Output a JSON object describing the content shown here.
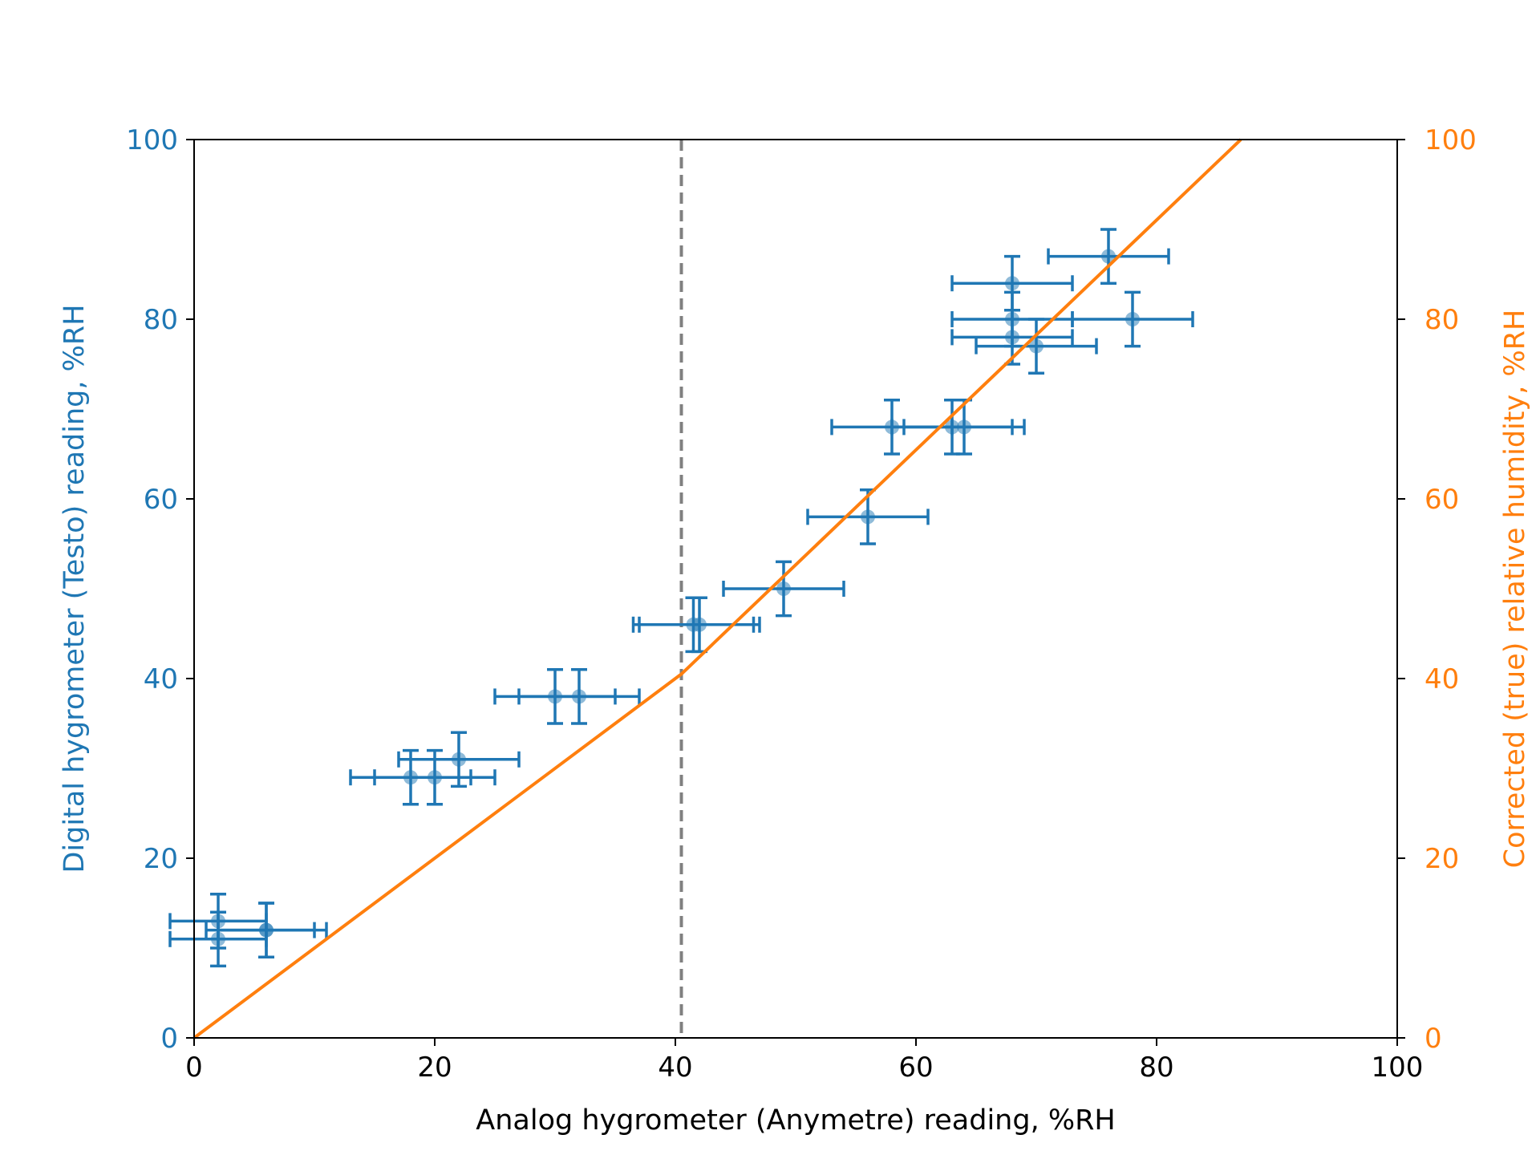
{
  "chart_data": {
    "type": "scatter",
    "title": "",
    "xlabel": "Analog hygrometer (Anymetre) reading, %RH",
    "ylabel": "Digital hygrometer (Testo) reading, %RH",
    "y2label": "Corrected (true) relative humidity, %RH",
    "xlim": [
      0,
      100
    ],
    "ylim": [
      0,
      100
    ],
    "y2lim": [
      0,
      100
    ],
    "xticks": [
      "0",
      "20",
      "40",
      "60",
      "80",
      "100"
    ],
    "yticks": [
      "0",
      "20",
      "40",
      "60",
      "80",
      "100"
    ],
    "y2ticks": [
      "0",
      "20",
      "40",
      "60",
      "80",
      "100"
    ],
    "grid": false,
    "legend": "none",
    "colors": {
      "measurements": "#1f77b4",
      "correction": "#ff7f0e",
      "breakpoint": "#808080",
      "axes": "#000000"
    },
    "series": [
      {
        "type": "scatter-errorbar",
        "axis": "left",
        "points": [
          {
            "x": 2,
            "y": 13,
            "xerr": 4,
            "yerr": 3
          },
          {
            "x": 2,
            "y": 11,
            "xerr": 4,
            "yerr": 3
          },
          {
            "x": 6,
            "y": 12,
            "xerr": 5,
            "yerr": 3
          },
          {
            "x": 6,
            "y": 12,
            "xerr": 4,
            "yerr": 3
          },
          {
            "x": 18,
            "y": 29,
            "xerr": 5,
            "yerr": 3
          },
          {
            "x": 20,
            "y": 29,
            "xerr": 5,
            "yerr": 3
          },
          {
            "x": 22,
            "y": 31,
            "xerr": 5,
            "yerr": 3
          },
          {
            "x": 30,
            "y": 38,
            "xerr": 5,
            "yerr": 3
          },
          {
            "x": 32,
            "y": 38,
            "xerr": 5,
            "yerr": 3
          },
          {
            "x": 41.5,
            "y": 46,
            "xerr": 5,
            "yerr": 3
          },
          {
            "x": 42,
            "y": 46,
            "xerr": 5,
            "yerr": 3
          },
          {
            "x": 49,
            "y": 50,
            "xerr": 5,
            "yerr": 3
          },
          {
            "x": 56,
            "y": 58,
            "xerr": 5,
            "yerr": 3
          },
          {
            "x": 58,
            "y": 68,
            "xerr": 5,
            "yerr": 3
          },
          {
            "x": 63,
            "y": 68,
            "xerr": 5,
            "yerr": 3
          },
          {
            "x": 64,
            "y": 68,
            "xerr": 5,
            "yerr": 3
          },
          {
            "x": 68,
            "y": 84,
            "xerr": 5,
            "yerr": 3
          },
          {
            "x": 68,
            "y": 80,
            "xerr": 5,
            "yerr": 3
          },
          {
            "x": 68,
            "y": 78,
            "xerr": 5,
            "yerr": 3
          },
          {
            "x": 70,
            "y": 77,
            "xerr": 5,
            "yerr": 3
          },
          {
            "x": 76,
            "y": 87,
            "xerr": 5,
            "yerr": 3
          },
          {
            "x": 78,
            "y": 80,
            "xerr": 5,
            "yerr": 3
          }
        ]
      },
      {
        "type": "line",
        "axis": "right",
        "x": [
          0,
          40.5,
          87
        ],
        "y": [
          0,
          40.5,
          100
        ]
      },
      {
        "type": "vline",
        "x": 40.5,
        "style": "dashed"
      }
    ]
  }
}
